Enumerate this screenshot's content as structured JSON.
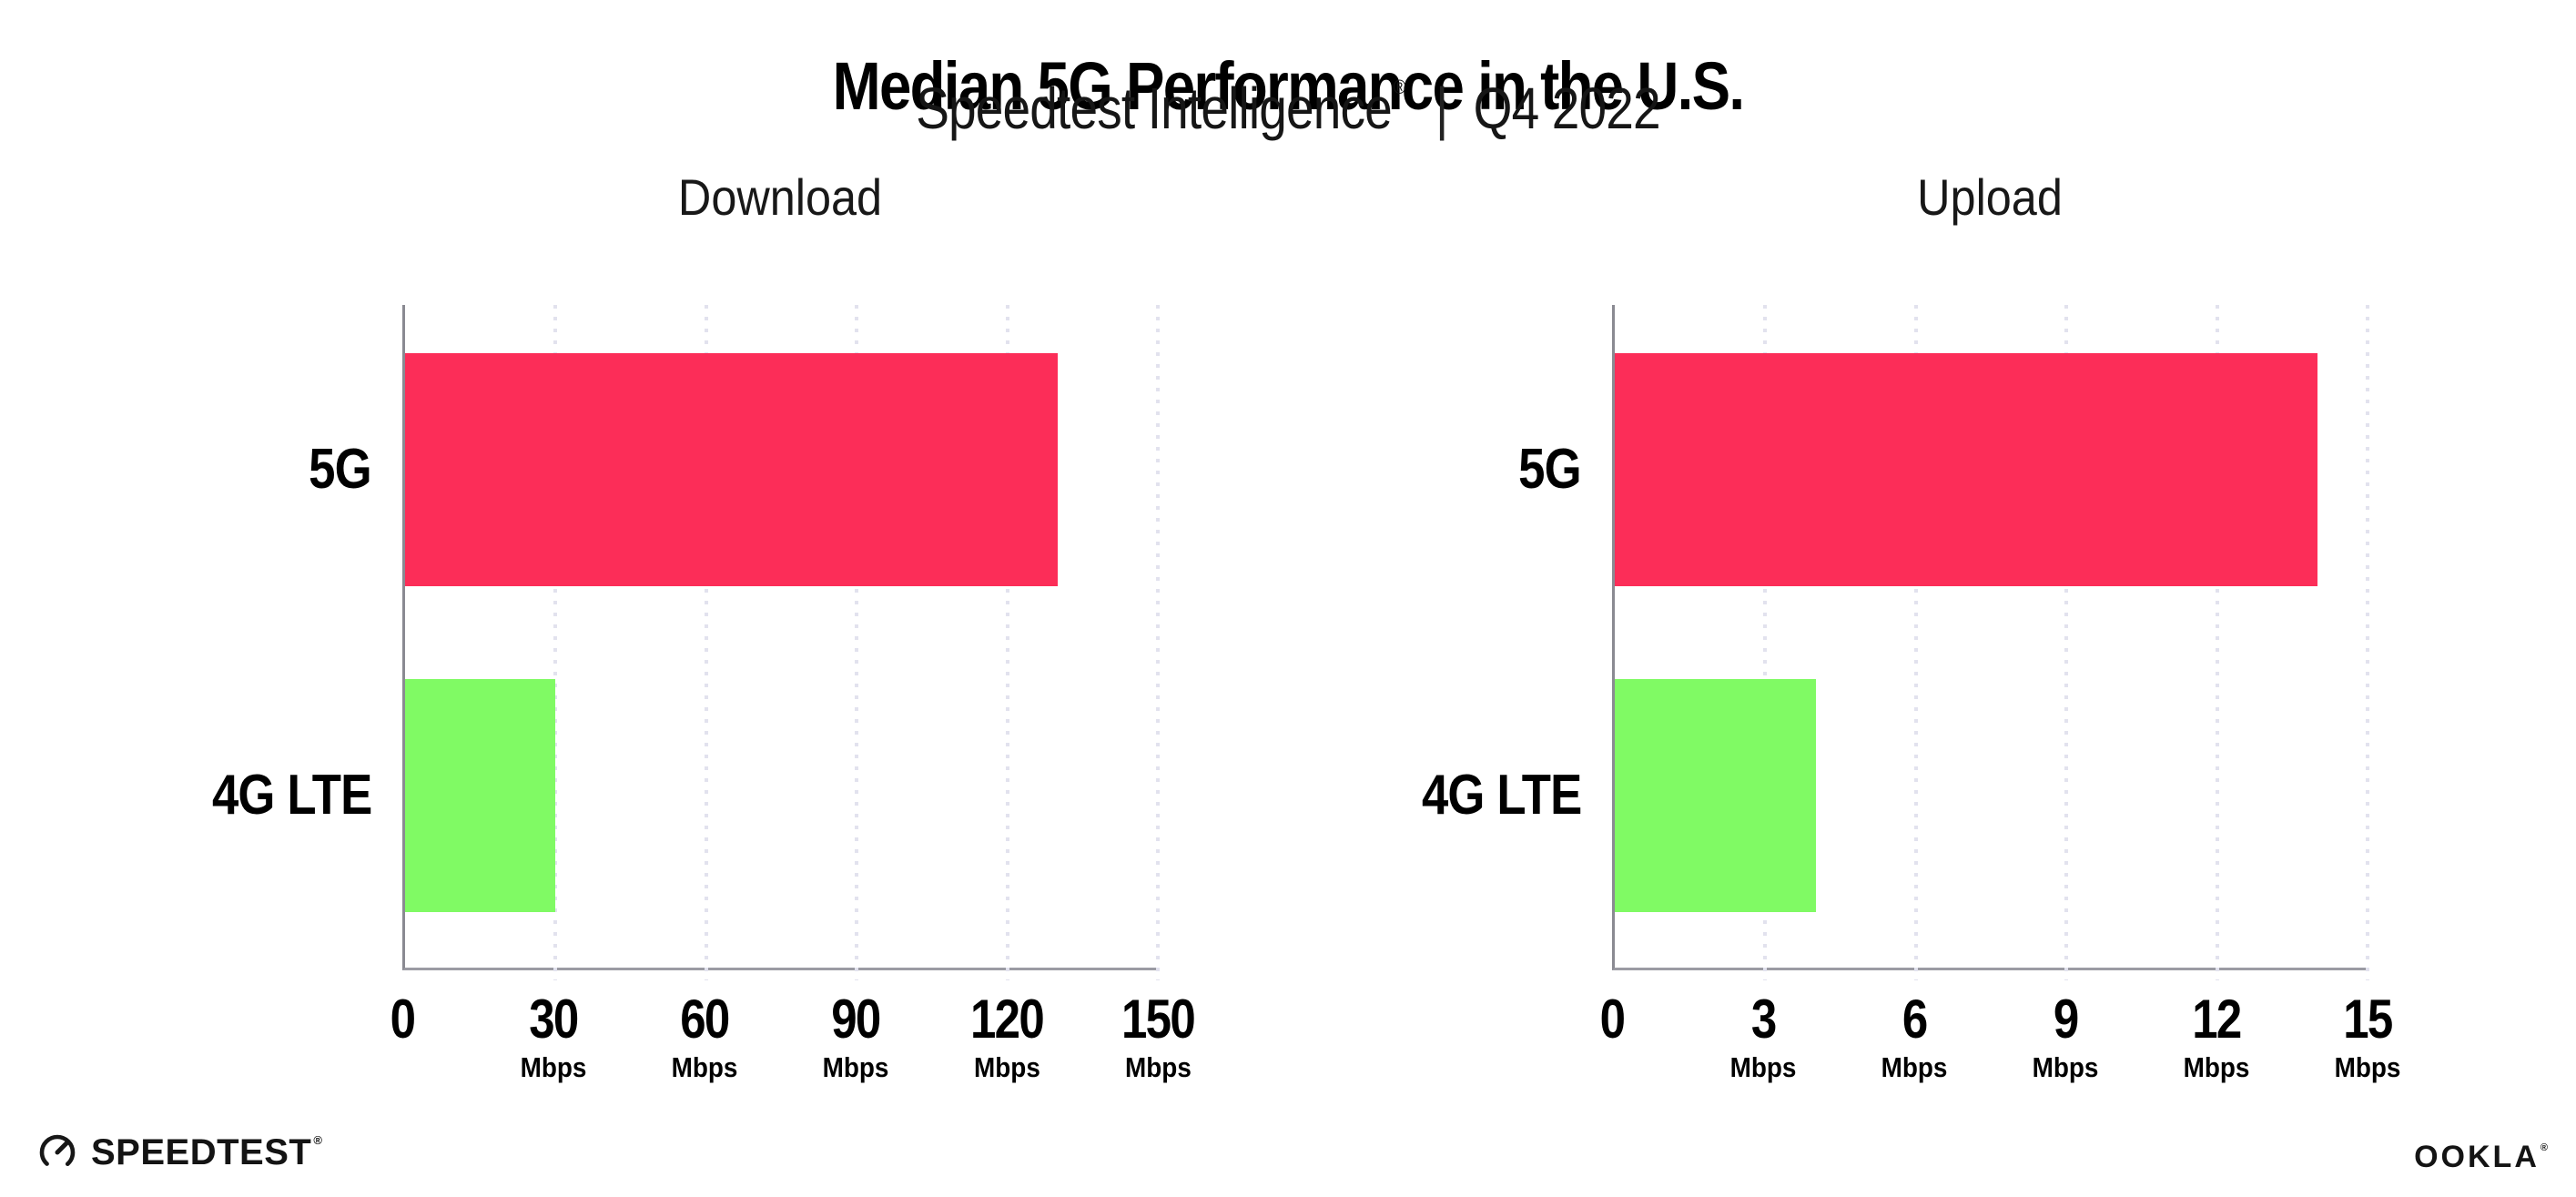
{
  "header": {
    "title": "Median 5G Performance in the U.S.",
    "subtitle_brand": "Speedtest Intelligence",
    "subtitle_mark": "®",
    "subtitle_separator": "|",
    "subtitle_period": "Q4 2022"
  },
  "footer": {
    "speedtest_label": "SPEEDTEST",
    "speedtest_mark": "®",
    "ookla_label": "OOKLA",
    "ookla_mark": "®"
  },
  "colors": {
    "bar_5g": "#fc2d58",
    "bar_4g_lte": "#80fa64",
    "gridline": "#e2e2ee",
    "axis": "#8a8a92",
    "text": "#000000"
  },
  "chart_data": [
    {
      "type": "bar",
      "orientation": "horizontal",
      "title": "Download",
      "categories": [
        "5G",
        "4G LTE"
      ],
      "values": [
        130,
        30
      ],
      "unit": "Mbps",
      "xlim": [
        0,
        150
      ],
      "xticks": [
        0,
        30,
        60,
        90,
        120,
        150
      ],
      "bar_colors": [
        "#fc2d58",
        "#80fa64"
      ],
      "grid": "dotted-vertical",
      "legend": "none"
    },
    {
      "type": "bar",
      "orientation": "horizontal",
      "title": "Upload",
      "categories": [
        "5G",
        "4G LTE"
      ],
      "values": [
        14,
        4
      ],
      "unit": "Mbps",
      "xlim": [
        0,
        15
      ],
      "xticks": [
        0,
        3,
        6,
        9,
        12,
        15
      ],
      "bar_colors": [
        "#fc2d58",
        "#80fa64"
      ],
      "grid": "dotted-vertical",
      "legend": "none"
    }
  ]
}
